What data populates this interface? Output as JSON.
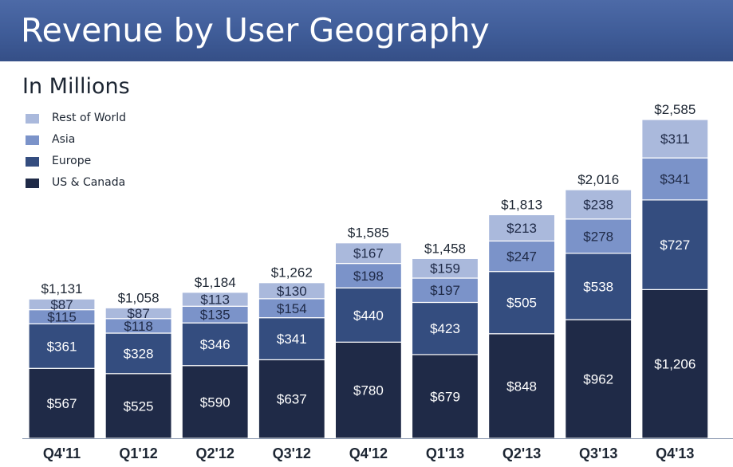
{
  "header": {
    "title": "Revenue by User Geography",
    "subtitle": "In Millions"
  },
  "legend": {
    "items": [
      {
        "label": "Rest of World",
        "color": "#aab9dc"
      },
      {
        "label": "Asia",
        "color": "#7b93c9"
      },
      {
        "label": "Europe",
        "color": "#344d7f"
      },
      {
        "label": "US & Canada",
        "color": "#1f2a47"
      }
    ]
  },
  "chart_data": {
    "type": "bar",
    "stacked": true,
    "title": "Revenue by User Geography",
    "subtitle": "In Millions",
    "categories": [
      "Q4'11",
      "Q1'12",
      "Q2'12",
      "Q3'12",
      "Q4'12",
      "Q1'13",
      "Q2'13",
      "Q3'13",
      "Q4'13"
    ],
    "series": [
      {
        "name": "US & Canada",
        "color": "#1f2a47",
        "values": [
          567,
          525,
          590,
          637,
          780,
          679,
          848,
          962,
          1206
        ]
      },
      {
        "name": "Europe",
        "color": "#344d7f",
        "values": [
          361,
          328,
          346,
          341,
          440,
          423,
          505,
          538,
          727
        ]
      },
      {
        "name": "Asia",
        "color": "#7b93c9",
        "values": [
          115,
          118,
          135,
          154,
          198,
          197,
          247,
          278,
          341
        ]
      },
      {
        "name": "Rest of World",
        "color": "#aab9dc",
        "values": [
          87,
          87,
          113,
          130,
          167,
          159,
          213,
          238,
          311
        ]
      }
    ],
    "totals": [
      1131,
      1058,
      1184,
      1262,
      1585,
      1458,
      1813,
      2016,
      2585
    ],
    "value_prefix": "$",
    "legend_position": "top-left",
    "grid": false
  }
}
